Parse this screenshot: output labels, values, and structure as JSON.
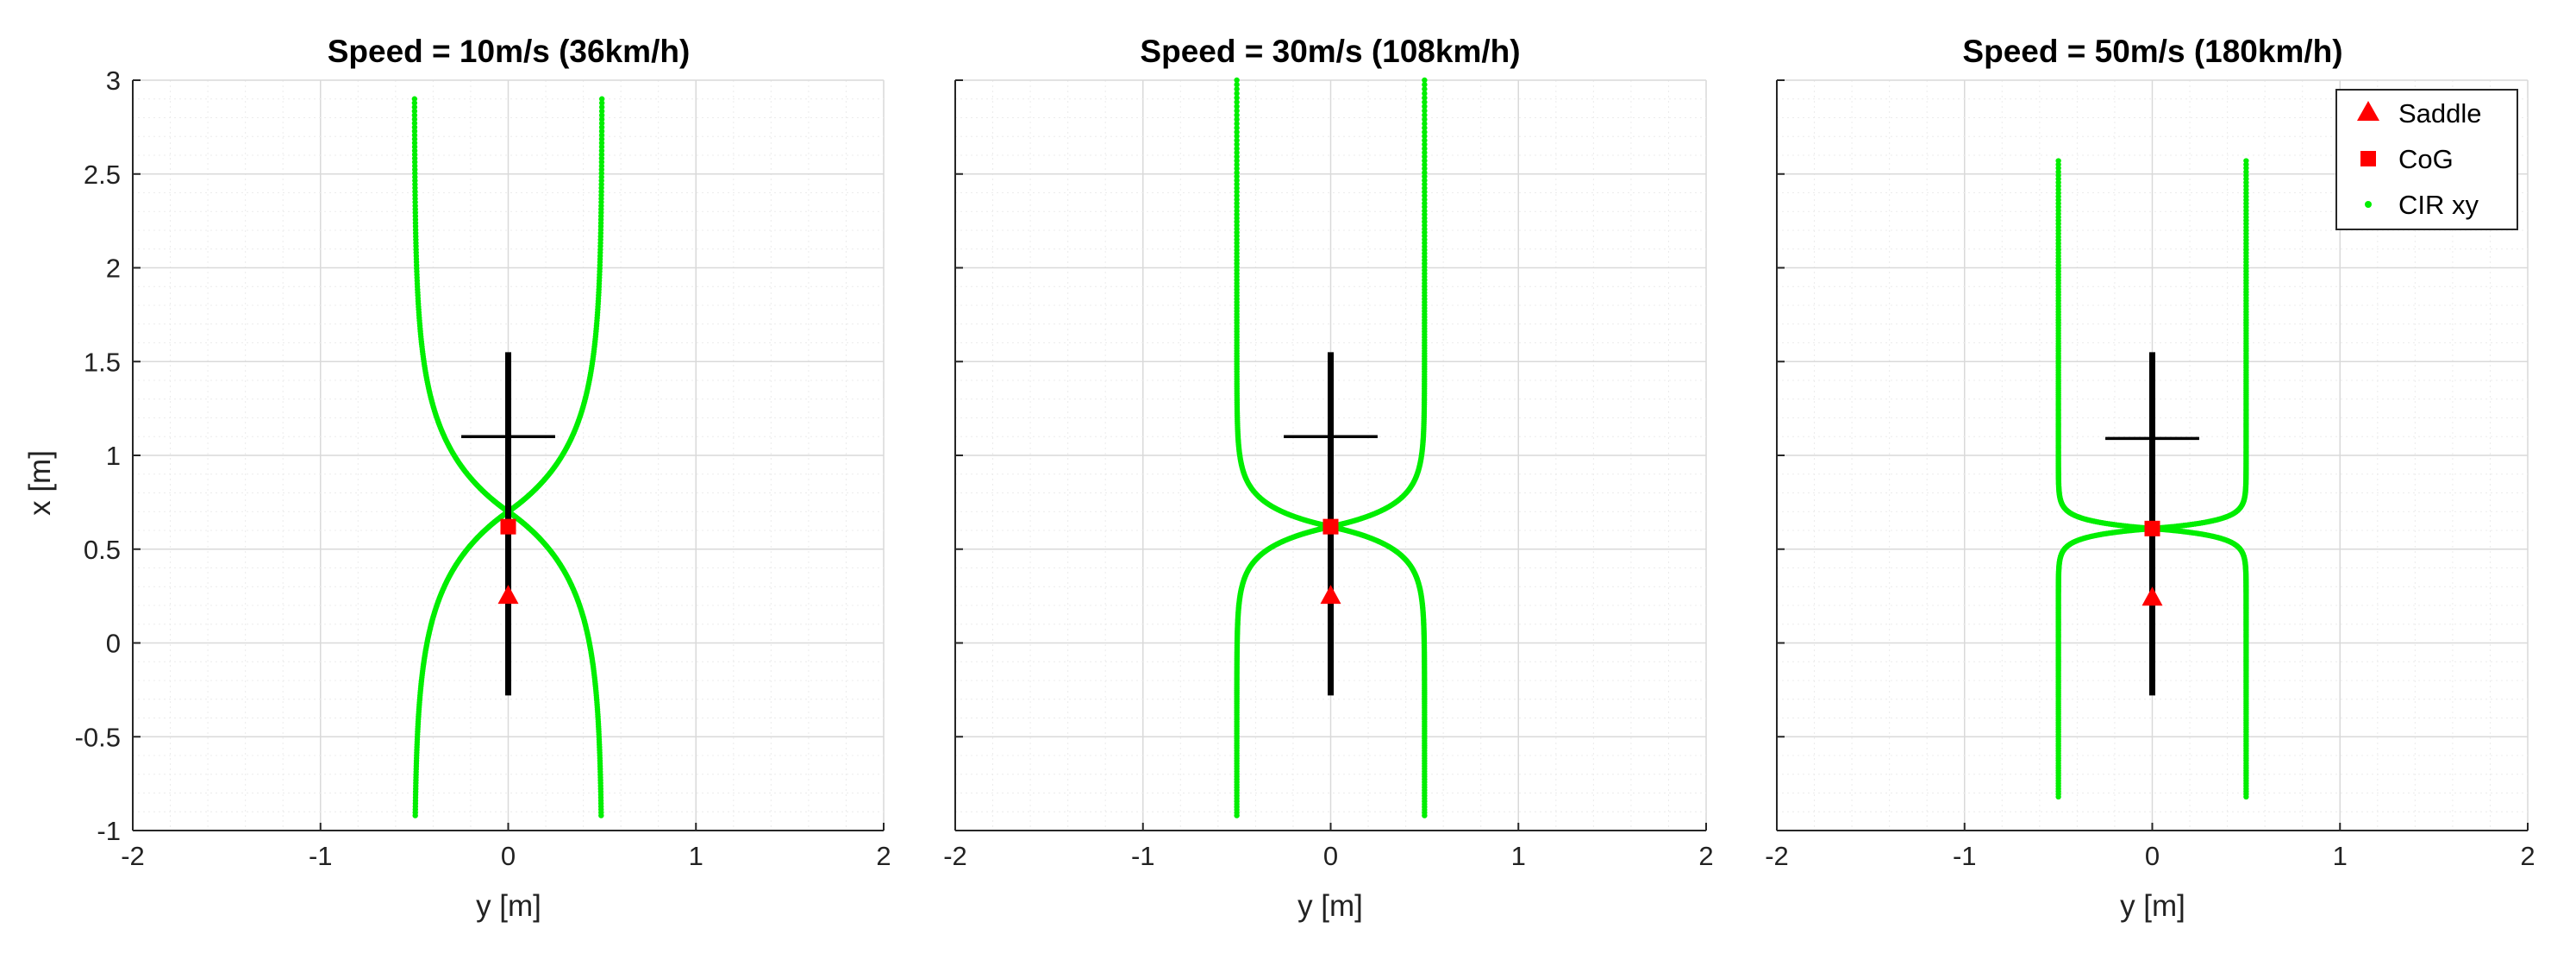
{
  "colors": {
    "cir": "#00ee00",
    "marker": "#ff0000",
    "frame": "#000000",
    "axis": "#262626",
    "grid_major": "#d9d9d9",
    "grid_minor": "#ececec"
  },
  "legend": {
    "placement": "top-right",
    "items": [
      {
        "label": "Saddle",
        "marker": "triangle"
      },
      {
        "label": "CoG",
        "marker": "square"
      },
      {
        "label": "CIR xy",
        "marker": "dot"
      }
    ]
  },
  "chart_data": [
    {
      "type": "scatter",
      "title": "Speed = 10m/s (36km/h)",
      "xlabel": "y [m]",
      "ylabel": "x [m]",
      "xlim": [
        -2,
        2
      ],
      "ylim": [
        -1,
        3
      ],
      "xticks": [
        "-2",
        "-1",
        "0",
        "1",
        "2"
      ],
      "yticks": [
        "-1",
        "-0.5",
        "0",
        "0.5",
        "1",
        "1.5",
        "2",
        "2.5",
        "3"
      ],
      "grid": true,
      "saddle": [
        0,
        0.25
      ],
      "cog": [
        0,
        0.62
      ],
      "cir_focus": 0.7,
      "cir_spread": 0.35,
      "cir_extent": [
        -0.92,
        2.9
      ],
      "frame": {
        "spine_x": [
          -0.28,
          1.55
        ],
        "handlebar_x": 1.1,
        "handlebar_half_width": 0.25
      }
    },
    {
      "type": "scatter",
      "title": "Speed = 30m/s (108km/h)",
      "xlabel": "y [m]",
      "ylabel": "",
      "xlim": [
        -2,
        2
      ],
      "ylim": [
        -1,
        3
      ],
      "xticks": [
        "-2",
        "-1",
        "0",
        "1",
        "2"
      ],
      "yticks": [],
      "grid": true,
      "saddle": [
        0,
        0.25
      ],
      "cog": [
        0,
        0.62
      ],
      "cir_focus": 0.62,
      "cir_spread": 0.11,
      "cir_extent": [
        -0.92,
        3.0
      ],
      "frame": {
        "spine_x": [
          -0.28,
          1.55
        ],
        "handlebar_x": 1.1,
        "handlebar_half_width": 0.25
      }
    },
    {
      "type": "scatter",
      "title": "Speed = 50m/s (180km/h)",
      "xlabel": "y [m]",
      "ylabel": "",
      "xlim": [
        -2,
        2
      ],
      "ylim": [
        -1,
        3
      ],
      "xticks": [
        "-2",
        "-1",
        "0",
        "1",
        "2"
      ],
      "yticks": [],
      "grid": true,
      "saddle": [
        0,
        0.24
      ],
      "cog": [
        0,
        0.61
      ],
      "cir_focus": 0.61,
      "cir_spread": 0.04,
      "cir_extent": [
        -0.82,
        2.57
      ],
      "frame": {
        "spine_x": [
          -0.28,
          1.55
        ],
        "handlebar_x": 1.09,
        "handlebar_half_width": 0.25
      }
    }
  ]
}
